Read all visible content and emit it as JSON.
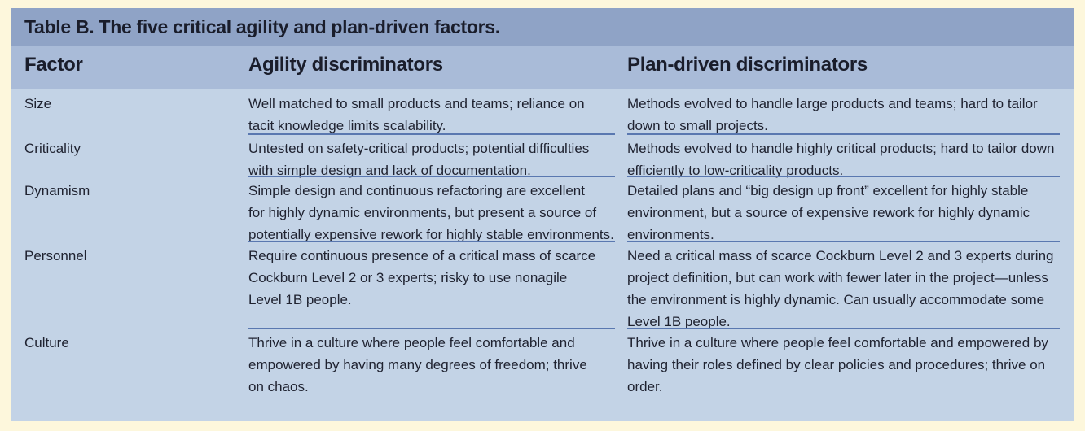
{
  "table": {
    "title": "Table B. The five critical agility and plan-driven factors.",
    "headers": {
      "factor": "Factor",
      "agility": "Agility discriminators",
      "plan": "Plan-driven discriminators"
    },
    "rows": [
      {
        "factor": "Size",
        "agility": [
          "Well matched to small products and teams; reliance on",
          "tacit knowledge limits scalability."
        ],
        "plan": [
          "Methods evolved to handle large products and teams; hard to tailor",
          "down to small projects."
        ]
      },
      {
        "factor": "Criticality",
        "agility": [
          "Untested on safety-critical products; potential difficulties",
          "with simple design and lack of documentation."
        ],
        "plan": [
          "Methods evolved to handle highly critical products; hard to tailor down",
          "efficiently to low-criticality products."
        ]
      },
      {
        "factor": "Dynamism",
        "agility": [
          "Simple design and continuous refactoring are excellent",
          "for highly dynamic environments, but present a source of",
          "potentially expensive rework for highly stable environments."
        ],
        "plan": [
          "Detailed plans and “big design up front” excellent for highly stable",
          "environment, but a source of expensive rework for highly dynamic",
          "environments."
        ]
      },
      {
        "factor": "Personnel",
        "agility": [
          "Require continuous presence of a critical mass of scarce",
          "Cockburn Level 2 or 3 experts; risky to use nonagile",
          "Level 1B people."
        ],
        "plan": [
          "Need a critical mass of scarce Cockburn Level 2 and 3 experts during",
          "project definition, but can work with fewer later in the project—unless",
          "the environment is highly dynamic. Can usually accommodate some",
          "Level 1B people."
        ]
      },
      {
        "factor": "Culture",
        "agility": [
          "Thrive in a culture where people feel comfortable and",
          "empowered by having many degrees of freedom; thrive",
          "on chaos."
        ],
        "plan": [
          "Thrive in a culture where people feel comfortable and empowered by",
          "having their roles defined by clear policies and procedures; thrive on",
          "order."
        ]
      }
    ]
  }
}
